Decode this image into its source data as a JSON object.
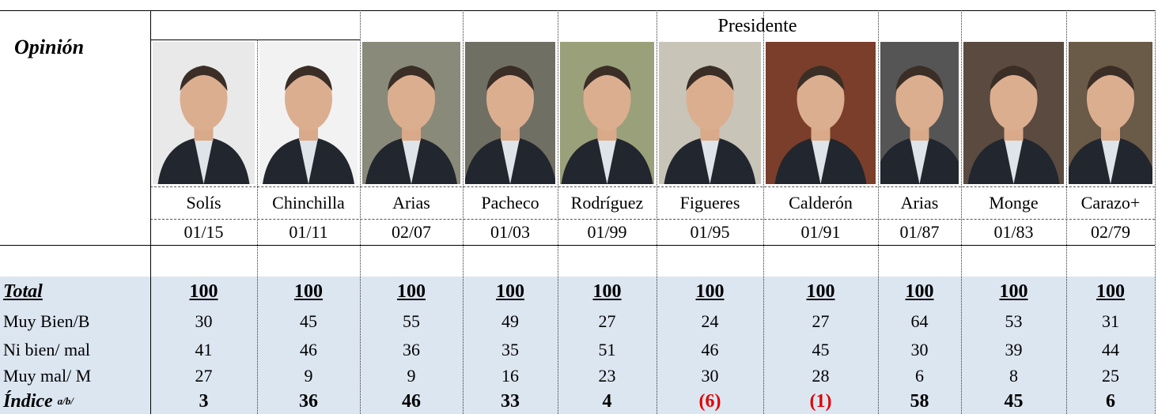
{
  "header": {
    "opinion": "Opinión",
    "presidente": "Presidente"
  },
  "presidents": [
    {
      "name": "Solís",
      "date": "01/15"
    },
    {
      "name": "Chinchilla",
      "date": "01/11"
    },
    {
      "name": "Arias",
      "date": "02/07"
    },
    {
      "name": "Pacheco",
      "date": "01/03"
    },
    {
      "name": "Rodríguez",
      "date": "01/99"
    },
    {
      "name": "Figueres",
      "date": "01/95"
    },
    {
      "name": "Calderón",
      "date": "01/91"
    },
    {
      "name": "Arias",
      "date": "01/87"
    },
    {
      "name": "Monge",
      "date": "01/83"
    },
    {
      "name": "Carazo+",
      "date": "02/79"
    }
  ],
  "rows": [
    {
      "label": "Total",
      "values": [
        "100",
        "100",
        "100",
        "100",
        "100",
        "100",
        "100",
        "100",
        "100",
        "100"
      ]
    },
    {
      "label": "Muy Bien/B",
      "values": [
        "30",
        "45",
        "55",
        "49",
        "27",
        "24",
        "27",
        "64",
        "53",
        "31"
      ]
    },
    {
      "label": "Ni bien/ mal",
      "values": [
        "41",
        "46",
        "36",
        "35",
        "51",
        "46",
        "45",
        "30",
        "39",
        "44"
      ]
    },
    {
      "label": "Muy mal/ M",
      "values": [
        "27",
        "9",
        "9",
        "16",
        "23",
        "30",
        "28",
        "6",
        "8",
        "25"
      ]
    },
    {
      "label": "Índice",
      "superscript": "a/b/",
      "values": [
        "3",
        "36",
        "46",
        "33",
        "4",
        "(6)",
        "(1)",
        "58",
        "45",
        "6"
      ]
    }
  ]
}
